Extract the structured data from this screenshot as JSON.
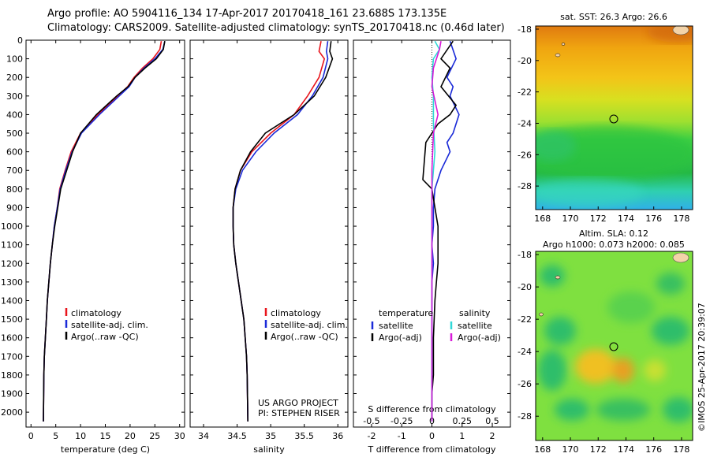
{
  "header": {
    "line1": "Argo profile: AO 5904116_134 17-Apr-2017 20170418_161 23.688S 173.135E",
    "line2": "Climatology: CARS2009. Satellite-adjusted climatology: synTS_20170418.nc (0.46d later)"
  },
  "colors": {
    "climatology": "#e8141b",
    "satellite": "#1a2ad8",
    "argo": "#000000",
    "sat_s": "#31d8d8",
    "argo_adj_s": "#d81ad8"
  },
  "credits": {
    "project": "US ARGO PROJECT",
    "pi": "PI: STEPHEN RISER"
  },
  "watermark": "©IMOS 25-Apr-2017 20:39:07",
  "chart_data": [
    {
      "type": "line",
      "name": "temperature",
      "xlabel": "temperature (deg C)",
      "ylabel": "",
      "xlim": [
        -1,
        31
      ],
      "ylim": [
        2080,
        0
      ],
      "xticks": [
        0,
        5,
        10,
        15,
        20,
        25,
        30
      ],
      "yticks": [
        0,
        100,
        200,
        300,
        400,
        500,
        600,
        700,
        800,
        900,
        1000,
        1100,
        1200,
        1300,
        1400,
        1500,
        1600,
        1700,
        1800,
        1900,
        2000
      ],
      "legend": [
        "climatology",
        "satellite-adj. clim.",
        "Argo(..raw -QC)"
      ],
      "series": [
        {
          "name": "climatology",
          "color": "#e8141b",
          "x": [
            26.3,
            26.0,
            24.6,
            22.5,
            20.8,
            19.5,
            17.5,
            13.5,
            10.0,
            8.1,
            6.9,
            5.8,
            5.3,
            4.7,
            4.3,
            3.9,
            3.6,
            3.3,
            3.1,
            2.9,
            2.7,
            2.6,
            2.5
          ],
          "y": [
            5,
            50,
            100,
            150,
            200,
            250,
            300,
            400,
            500,
            600,
            700,
            800,
            900,
            1000,
            1100,
            1200,
            1300,
            1400,
            1500,
            1600,
            1700,
            1800,
            2050
          ]
        },
        {
          "name": "satellite-adj. clim.",
          "color": "#1a2ad8",
          "x": [
            27.0,
            26.6,
            25.0,
            22.8,
            21.0,
            19.8,
            17.8,
            13.8,
            10.2,
            8.3,
            7.0,
            5.9,
            5.3,
            4.7,
            4.3,
            3.9,
            3.6,
            3.3,
            3.1,
            2.9,
            2.7,
            2.6,
            2.5
          ],
          "y": [
            5,
            50,
            100,
            150,
            200,
            250,
            300,
            400,
            500,
            600,
            700,
            800,
            900,
            1000,
            1100,
            1200,
            1300,
            1400,
            1500,
            1600,
            1700,
            1800,
            2050
          ]
        },
        {
          "name": "Argo(..raw -QC)",
          "color": "#000000",
          "x": [
            27.0,
            26.7,
            25.3,
            23.0,
            21.0,
            19.6,
            17.3,
            13.2,
            10.0,
            8.4,
            7.2,
            6.0,
            5.4,
            4.8,
            4.3,
            3.9,
            3.6,
            3.3,
            3.1,
            2.9,
            2.7,
            2.6,
            2.5
          ],
          "y": [
            5,
            50,
            100,
            150,
            200,
            250,
            300,
            400,
            500,
            600,
            700,
            800,
            900,
            1000,
            1100,
            1200,
            1300,
            1400,
            1500,
            1600,
            1700,
            1800,
            2050
          ]
        }
      ]
    },
    {
      "type": "line",
      "name": "salinity",
      "xlabel": "salinity",
      "ylabel": "",
      "xlim": [
        33.8,
        36.15
      ],
      "xticks": [
        34,
        34.5,
        35,
        35.5,
        36
      ],
      "xticklabels": [
        "34",
        "34.5",
        "35",
        "35.5",
        "36"
      ],
      "legend": [
        "climatology",
        "satellite-adj. clim.",
        "Argo(..raw -QC)"
      ],
      "series": [
        {
          "name": "climatology",
          "color": "#e8141b",
          "x": [
            35.75,
            35.72,
            35.8,
            35.72,
            35.55,
            35.35,
            35.0,
            34.72,
            34.55,
            34.47,
            34.44,
            34.44,
            34.45,
            34.48,
            34.52,
            34.56,
            34.6,
            34.62,
            34.64,
            34.65,
            34.66
          ],
          "y": [
            5,
            60,
            100,
            200,
            300,
            400,
            500,
            600,
            700,
            800,
            900,
            1000,
            1100,
            1200,
            1300,
            1400,
            1500,
            1600,
            1700,
            1800,
            2050
          ]
        },
        {
          "name": "satellite-adj. clim.",
          "color": "#1a2ad8",
          "x": [
            35.85,
            35.83,
            35.85,
            35.78,
            35.62,
            35.4,
            35.05,
            34.78,
            34.58,
            34.48,
            34.44,
            34.44,
            34.45,
            34.48,
            34.52,
            34.56,
            34.6,
            34.62,
            34.64,
            34.65,
            34.66
          ],
          "y": [
            5,
            60,
            100,
            200,
            300,
            400,
            500,
            600,
            700,
            800,
            900,
            1000,
            1100,
            1200,
            1300,
            1400,
            1500,
            1600,
            1700,
            1800,
            2050
          ]
        },
        {
          "name": "Argo(..raw -QC)",
          "color": "#000000",
          "x": [
            35.9,
            35.88,
            35.92,
            35.82,
            35.65,
            35.35,
            34.92,
            34.7,
            34.55,
            34.47,
            34.44,
            34.44,
            34.45,
            34.48,
            34.52,
            34.56,
            34.6,
            34.62,
            34.64,
            34.65,
            34.66
          ],
          "y": [
            5,
            60,
            100,
            200,
            300,
            400,
            500,
            600,
            700,
            800,
            900,
            1000,
            1100,
            1200,
            1300,
            1400,
            1500,
            1600,
            1700,
            1800,
            2050
          ]
        }
      ]
    },
    {
      "type": "line",
      "name": "difference",
      "xlabel": "T difference from climatology",
      "xlabel_top": "S difference from climatology",
      "xlim": [
        -2.6,
        2.6
      ],
      "xticks": [
        -2,
        -1,
        0,
        1,
        2
      ],
      "top_ticks": [
        -0.5,
        -0.25,
        0,
        0.25,
        0.5
      ],
      "legend_groups": [
        {
          "title": "temperature",
          "items": [
            "satellite",
            "Argo(-adj)"
          ]
        },
        {
          "title": "salinity",
          "items": [
            "satellite",
            "Argo(-adj)"
          ]
        }
      ],
      "series": [
        {
          "name": "T satellite",
          "color": "#1a2ad8",
          "x": [
            0.6,
            0.8,
            0.5,
            0.7,
            0.6,
            0.9,
            0.7,
            0.5,
            0.6,
            0.3,
            0.1,
            0.05,
            0.05,
            0,
            0.05,
            0,
            0,
            0,
            0,
            0,
            0
          ],
          "y": [
            5,
            100,
            200,
            250,
            300,
            400,
            500,
            550,
            600,
            700,
            800,
            900,
            1000,
            1100,
            1200,
            1300,
            1400,
            1600,
            1800,
            1900,
            2050
          ]
        },
        {
          "name": "T Argo(-adj)",
          "color": "#000000",
          "x": [
            0.7,
            0.3,
            0.6,
            0.3,
            0.8,
            0.6,
            0.2,
            0.0,
            -0.2,
            -0.3,
            0.0,
            0.1,
            0.2,
            0.2,
            0.2,
            0.15,
            0.1,
            0.05,
            0.05,
            0,
            0
          ],
          "y": [
            5,
            100,
            150,
            250,
            350,
            400,
            450,
            500,
            550,
            750,
            800,
            900,
            1000,
            1100,
            1200,
            1300,
            1400,
            1600,
            1800,
            1900,
            2050
          ]
        },
        {
          "name": "S satellite",
          "color": "#31d8d8",
          "x": [
            0.1,
            0.25,
            0.05,
            0.0,
            0.05,
            0.05,
            0.1,
            0.0,
            0.0,
            0.0,
            0.0
          ],
          "y": [
            5,
            50,
            100,
            200,
            300,
            450,
            600,
            800,
            1100,
            1500,
            2050
          ]
        },
        {
          "name": "S Argo(-adj)",
          "color": "#d81ad8",
          "x": [
            0.3,
            0.25,
            0.05,
            0.0,
            0.2,
            0.05,
            0.0,
            0.0,
            0.0
          ],
          "y": [
            5,
            50,
            150,
            250,
            400,
            500,
            700,
            1100,
            2050
          ]
        }
      ]
    },
    {
      "type": "heatmap",
      "name": "sst-map",
      "title": "sat. SST: 26.3 Argo: 26.6",
      "xlim": [
        167.5,
        178.8
      ],
      "ylim": [
        -29.5,
        -17.8
      ],
      "xticks": [
        168,
        170,
        172,
        174,
        176,
        178
      ],
      "yticks": [
        -18,
        -20,
        -22,
        -24,
        -26,
        -28
      ],
      "marker": {
        "lon": 173.135,
        "lat": -23.688
      }
    },
    {
      "type": "heatmap",
      "name": "sla-map",
      "title": "Altim. SLA: 0.12",
      "subtitle": "Argo h1000: 0.073 h2000: 0.085",
      "xlim": [
        167.5,
        178.8
      ],
      "ylim": [
        -29.5,
        -17.8
      ],
      "xticks": [
        168,
        170,
        172,
        174,
        176,
        178
      ],
      "yticks": [
        -18,
        -20,
        -22,
        -24,
        -26,
        -28
      ],
      "marker": {
        "lon": 173.135,
        "lat": -23.688
      }
    }
  ]
}
